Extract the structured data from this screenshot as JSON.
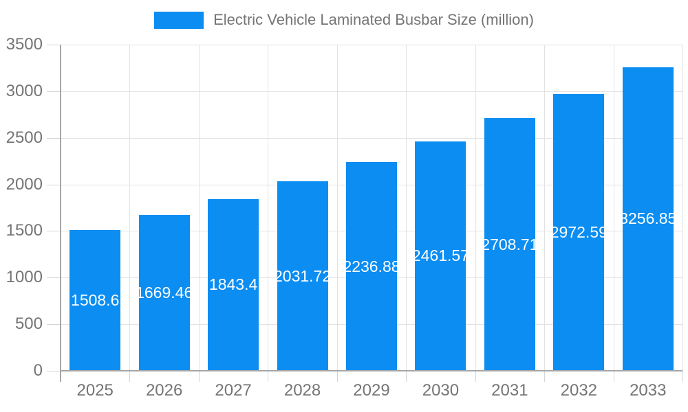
{
  "chart_data": {
    "type": "bar",
    "title": "Electric Vehicle Laminated Busbar Size (million)",
    "categories": [
      "2025",
      "2026",
      "2027",
      "2028",
      "2029",
      "2030",
      "2031",
      "2032",
      "2033"
    ],
    "values": [
      1508.6,
      1669.46,
      1843.4,
      2031.72,
      2236.88,
      2461.57,
      2708.71,
      2972.59,
      3256.85
    ],
    "bar_labels": [
      "1508.6",
      "1669.46",
      "1843.4",
      "2031.72",
      "2236.88",
      "2461.57",
      "2708.71",
      "2972.59",
      "3256.85"
    ],
    "xlabel": "",
    "ylabel": "",
    "ylim": [
      0,
      3500
    ],
    "yticks": [
      0,
      500,
      1000,
      1500,
      2000,
      2500,
      3000,
      3500
    ],
    "ytick_labels": [
      "0",
      "500",
      "1000",
      "1500",
      "2000",
      "2500",
      "3000",
      "3500"
    ],
    "grid": true,
    "legend_position": "top",
    "bar_color": "#0b8df2",
    "bar_label_color": "#ffffff",
    "axis_text_color": "#757575",
    "grid_color": "#e2e2e2",
    "axis_line_color": "#a6a6a6"
  }
}
